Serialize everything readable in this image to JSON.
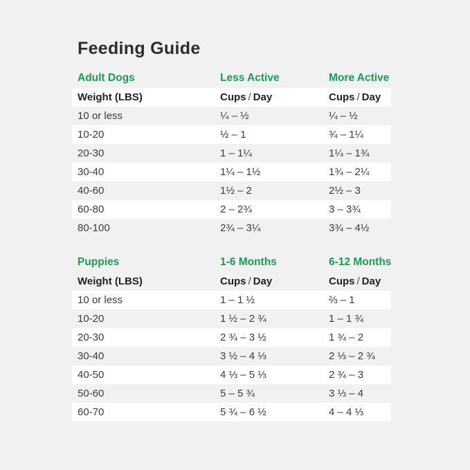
{
  "title": "Feeding Guide",
  "colors": {
    "accent_green": "#1a9e52",
    "page_background": "#f1f1f2",
    "row_stripe": "#ffffff",
    "body_text": "#3b3b3b",
    "title_text": "#2d2d2d"
  },
  "sections": [
    {
      "id": "adult-dogs",
      "heading": {
        "col1": "Adult Dogs",
        "col2": "Less Active",
        "col3": "More Active"
      },
      "table_header": {
        "col1": "Weight (LBS)",
        "col2_parts": [
          "Cups",
          "/",
          "Day"
        ],
        "col3_parts": [
          "Cups",
          "/",
          "Day"
        ]
      },
      "rows": [
        [
          "10 or less",
          "¼ – ½",
          "¼ – ½"
        ],
        [
          "10-20",
          "½ – 1",
          "¾ – 1¼"
        ],
        [
          "20-30",
          "1 – 1¼",
          "1¼ – 1¾"
        ],
        [
          "30-40",
          "1¼ – 1½",
          "1¾ – 2¼"
        ],
        [
          "40-60",
          "1½ – 2",
          "2½ – 3"
        ],
        [
          "60-80",
          "2 – 2¾",
          "3 – 3¾"
        ],
        [
          "80-100",
          "2¾ – 3¼",
          "3¾ – 4½"
        ]
      ]
    },
    {
      "id": "puppies",
      "heading": {
        "col1": "Puppies",
        "col2": "1-6 Months",
        "col3": "6-12 Months"
      },
      "table_header": {
        "col1": "Weight (LBS)",
        "col2_parts": [
          "Cups",
          "/",
          "Day"
        ],
        "col3_parts": [
          "Cups",
          "/",
          "Day"
        ]
      },
      "rows": [
        [
          "10 or less",
          "1 – 1 ½",
          "⅔ – 1"
        ],
        [
          "10-20",
          "1 ½ – 2 ¾",
          "1 – 1 ¾"
        ],
        [
          "20-30",
          "2 ¾ – 3 ½",
          "1 ¾ – 2"
        ],
        [
          "30-40",
          "3 ½ – 4 ⅓",
          "2 ⅓ – 2 ¾"
        ],
        [
          "40-50",
          "4 ⅓ – 5 ⅓",
          "2 ¾ – 3"
        ],
        [
          "50-60",
          "5 – 5 ¾",
          "3 ⅓ – 4"
        ],
        [
          "60-70",
          "5 ¾ – 6 ½",
          "4 – 4 ⅓"
        ]
      ]
    }
  ]
}
